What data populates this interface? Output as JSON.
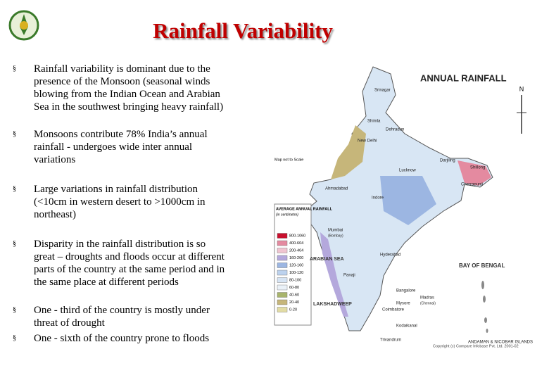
{
  "header": {
    "title": "Rainfall Variability"
  },
  "bullets": [
    [
      "Rainfall variability is dominant due to the",
      "presence of the Monsoon (seasonal winds",
      "blowing from the Indian Ocean and Arabian",
      "Sea in the southwest bringing heavy rainfall)"
    ],
    [
      "Monsoons contribute 78% India’s annual",
      "rainfall - undergoes wide inter annual",
      "variations"
    ],
    [
      "Large variations in rainfall distribution",
      "(<10cm in western desert to >1000cm in",
      "northeast)"
    ],
    [
      "Disparity in the rainfall distribution is so",
      "great – droughts and floods occur at different",
      "parts of the country at the same period and in",
      "the same place at different periods"
    ],
    [
      "One - third of the country is mostly under",
      "threat of drought"
    ],
    [
      "One - sixth of the country prone to floods"
    ]
  ],
  "map": {
    "title": "ANNUAL RAINFALL",
    "north": "N",
    "note": "Map not to Scale",
    "legend": {
      "title": "AVERAGE ANNUAL RAINFALL",
      "unit": "(in centimetre)",
      "items": [
        {
          "label": "800-1060",
          "color": "#c8102e"
        },
        {
          "label": "400-604",
          "color": "#e48aa0"
        },
        {
          "label": "200-404",
          "color": "#f0c4d0"
        },
        {
          "label": "160-200",
          "color": "#b4a8dc"
        },
        {
          "label": "120-160",
          "color": "#9cb6e2"
        },
        {
          "label": "100-120",
          "color": "#bcd2ee"
        },
        {
          "label": "80-100",
          "color": "#d6e4f4"
        },
        {
          "label": "60-80",
          "color": "#eaf1f8"
        },
        {
          "label": "40-60",
          "color": "#a8b46c"
        },
        {
          "label": "20-40",
          "color": "#c6b67a"
        },
        {
          "label": "0-20",
          "color": "#e2dca4"
        }
      ]
    },
    "places": [
      "Srinagar",
      "Shimla",
      "Dehradun",
      "New Delhi",
      "Lucknow",
      "Darjiling",
      "Shillong",
      "Cherrapunji",
      "Ahmadabad",
      "Indore",
      "Mumbai",
      "(Bombay)",
      "Hyderabad",
      "ARABIAN SEA",
      "BAY OF BENGAL",
      "Panaji",
      "Bangalore",
      "Madras",
      "(Chennai)",
      "Mysore",
      "Coimbatore",
      "LAKSHADWEEP",
      "Kodaikanal",
      "Trivandrum",
      "ANDAMAN & NICOBAR ISLANDS"
    ],
    "copyright": "Copyright (c) Compare Infobase Pvt. Ltd. 2001-02"
  }
}
